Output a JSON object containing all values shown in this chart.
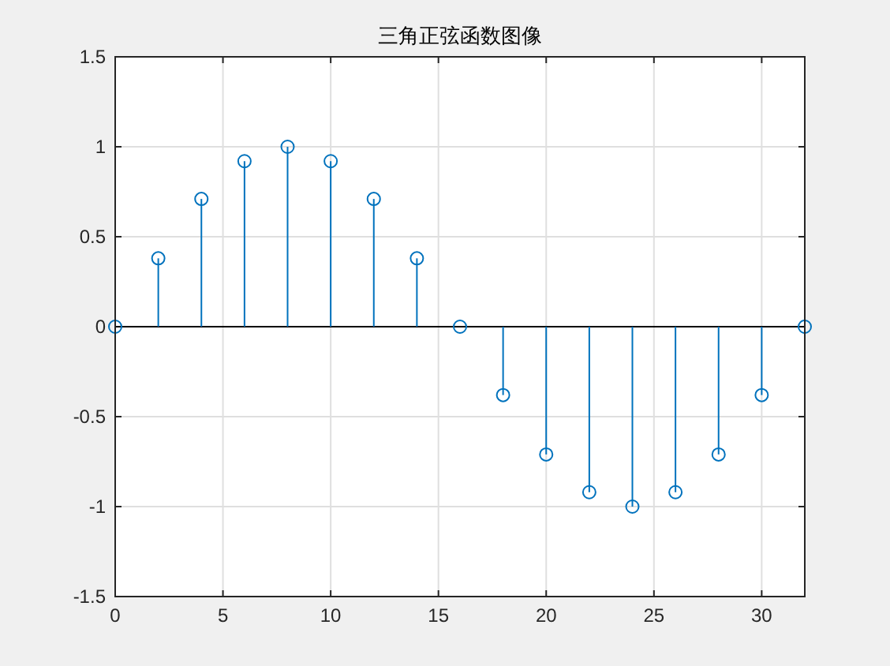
{
  "chart_data": {
    "type": "lollipop",
    "title": "三角正弦函数图像",
    "x": [
      0,
      2,
      4,
      6,
      8,
      10,
      12,
      14,
      16,
      18,
      20,
      22,
      24,
      26,
      28,
      30,
      32
    ],
    "series": [
      {
        "color": "#0072bd",
        "values": [
          0,
          0.38,
          0.71,
          0.92,
          1,
          0.92,
          0.71,
          0.38,
          0,
          -0.38,
          -0.71,
          -0.92,
          -1,
          -0.92,
          -0.71,
          -0.38,
          0
        ]
      }
    ],
    "xlim": [
      0,
      32
    ],
    "xticks": [
      0,
      5,
      10,
      15,
      20,
      25,
      30
    ],
    "ylim": [
      -1.5,
      1.5
    ],
    "yticks": [
      -1.5,
      -1,
      -0.5,
      0,
      0.5,
      1,
      1.5
    ],
    "grid": true,
    "marker": "circle"
  }
}
